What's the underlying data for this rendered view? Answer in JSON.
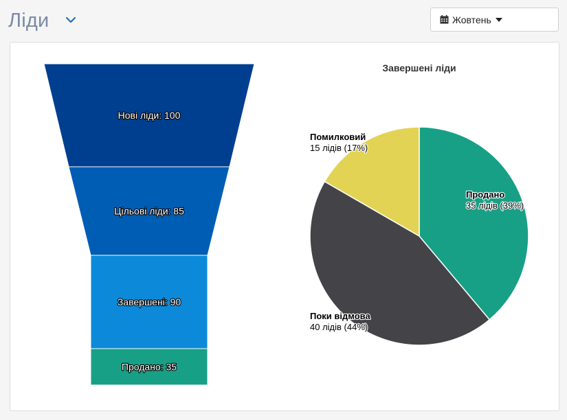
{
  "header": {
    "title": "Ліди",
    "month_button_label": "Жовтень"
  },
  "icons": {
    "title_dropdown": "chevron-down-icon",
    "month_button": "calendar-icon",
    "month_caret": "caret-down-icon"
  },
  "colors": {
    "title": "#7b8aa6",
    "funnel": [
      "#003f8f",
      "#005db4",
      "#0c8ad9",
      "#17a085"
    ],
    "pie": [
      "#17a085",
      "#444448",
      "#e3d355"
    ]
  },
  "chart_data": [
    {
      "type": "funnel",
      "stages": [
        {
          "label": "Нові ліди: 100",
          "value": 100
        },
        {
          "label": "Цільові ліди: 85",
          "value": 85
        },
        {
          "label": "Завершені: 90",
          "value": 90
        },
        {
          "label": "Продано: 35",
          "value": 35
        }
      ]
    },
    {
      "type": "pie",
      "title": "Завершені ліди",
      "slices": [
        {
          "name": "Продано",
          "value": 35,
          "detail": "35 лідів (39%)"
        },
        {
          "name": "Поки відмова",
          "value": 40,
          "detail": "40 лідів (44%)"
        },
        {
          "name": "Помилковий",
          "value": 15,
          "detail": "15 лідів (17%)"
        }
      ]
    }
  ]
}
